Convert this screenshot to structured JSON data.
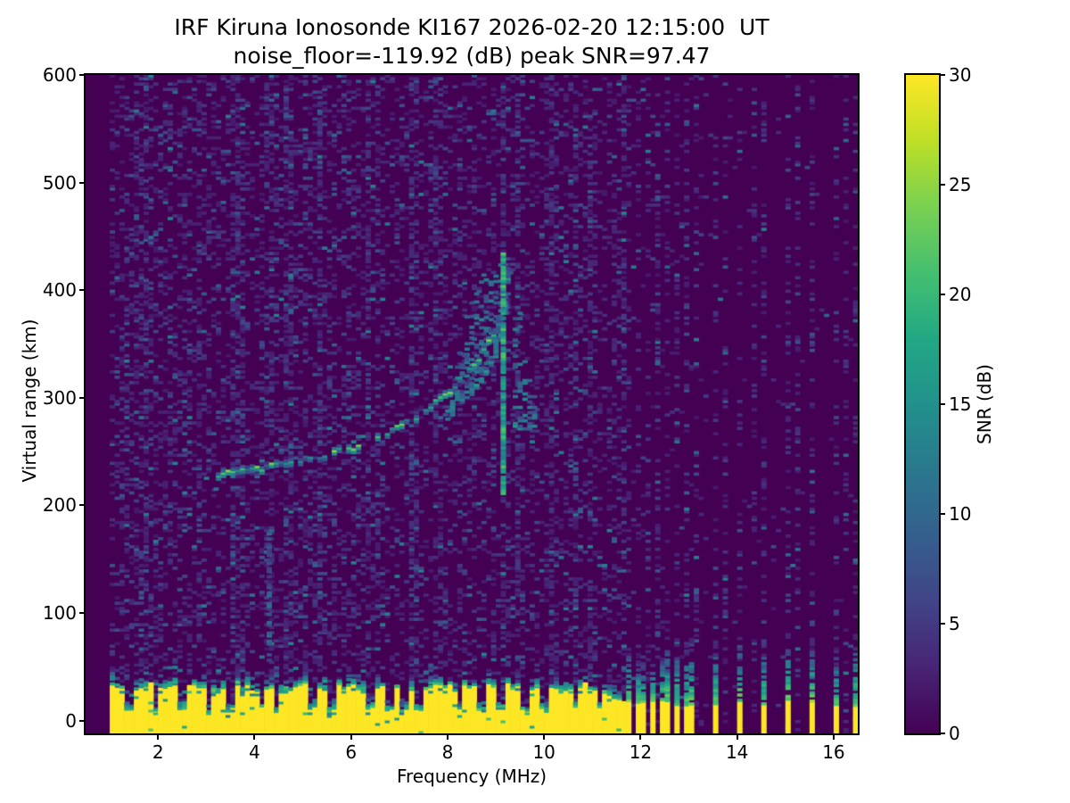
{
  "figure": {
    "background": "#ffffff"
  },
  "chart_data": {
    "type": "heatmap",
    "title": "IRF Kiruna Ionosonde KI167 2026-02-20 12:15:00  UT",
    "subtitle": "noise_floor=-119.92 (dB) peak SNR=97.47",
    "xlabel": "Frequency (MHz)",
    "ylabel": "Virtual range (km)",
    "colorbar_label": "SNR (dB)",
    "station": "KI167",
    "timestamp_ut": "2026-02-20 12:15:00",
    "noise_floor_db": -119.92,
    "peak_snr_db": 97.47,
    "xlim": [
      0.5,
      16.5
    ],
    "ylim": [
      -12,
      600
    ],
    "clim": [
      0,
      30
    ],
    "xticks": [
      2,
      4,
      6,
      8,
      10,
      12,
      14,
      16
    ],
    "yticks": [
      0,
      100,
      200,
      300,
      400,
      500,
      600
    ],
    "cticks": [
      0,
      5,
      10,
      15,
      20,
      25,
      30
    ],
    "colormap": "viridis",
    "colormap_stops": [
      {
        "t": 0.0,
        "c": "#440154"
      },
      {
        "t": 0.1,
        "c": "#482475"
      },
      {
        "t": 0.2,
        "c": "#414487"
      },
      {
        "t": 0.3,
        "c": "#355f8d"
      },
      {
        "t": 0.4,
        "c": "#2a788e"
      },
      {
        "t": 0.5,
        "c": "#21918c"
      },
      {
        "t": 0.6,
        "c": "#22a884"
      },
      {
        "t": 0.7,
        "c": "#44bf70"
      },
      {
        "t": 0.8,
        "c": "#7ad151"
      },
      {
        "t": 0.9,
        "c": "#bddf26"
      },
      {
        "t": 1.0,
        "c": "#fde725"
      }
    ],
    "data_start_mhz": 1.0,
    "freq_bin_mhz": 0.1,
    "range_bin_km": 2.5,
    "noise": {
      "speckle_density": 0.4,
      "speckle_db_scale": 1.9,
      "speckle_db_floor": 1.2,
      "active_columns_mhz": [
        1.65,
        2.8,
        3.6,
        4.25,
        4.7,
        5.3,
        6.3,
        7.25,
        7.75,
        9.1,
        10.15,
        10.9
      ],
      "stripe_columns_mhz": [
        11.7,
        11.9,
        12.1,
        12.3,
        12.5,
        12.7,
        12.9,
        13.1,
        13.5,
        13.7,
        14.0,
        14.3,
        14.5,
        15.0,
        15.2,
        15.5,
        16.0,
        16.2,
        16.42
      ],
      "cluster_zone_mhz": [
        11.65,
        13.3
      ]
    },
    "ground_band": {
      "top_km_mean": 27,
      "top_km_jitter": 8,
      "solid_until_mhz": 11.6,
      "taper_start_mhz": 10.85,
      "bar_freqs_mhz": [
        11.7,
        11.87,
        12.03,
        12.2,
        12.37,
        12.53,
        12.7,
        12.87,
        13.03,
        13.5,
        14.0,
        14.5,
        15.0,
        15.5,
        16.0,
        16.42
      ],
      "notch_freqs_mhz": [
        1.35,
        1.9,
        2.45,
        3.0,
        3.45,
        4.1,
        4.4,
        5.15,
        5.55,
        6.35,
        6.75,
        7.05,
        7.35,
        8.2,
        8.65,
        9.05,
        9.55,
        9.95,
        10.6,
        11.1
      ]
    },
    "echo_trace": {
      "critical_freq_mhz": 9.25,
      "points_mhz_km": [
        [
          3.2,
          228
        ],
        [
          3.6,
          230
        ],
        [
          4.0,
          232
        ],
        [
          4.5,
          236
        ],
        [
          5.0,
          241
        ],
        [
          5.5,
          247
        ],
        [
          6.0,
          252
        ],
        [
          6.5,
          261
        ],
        [
          7.0,
          272
        ],
        [
          7.4,
          284
        ],
        [
          7.8,
          298
        ],
        [
          8.1,
          310
        ],
        [
          8.4,
          324
        ],
        [
          8.7,
          342
        ],
        [
          8.95,
          362
        ],
        [
          9.1,
          385
        ],
        [
          9.2,
          410
        ],
        [
          9.25,
          430
        ]
      ],
      "gap_probability": 0.2
    },
    "spread_plume": {
      "freq_range_mhz": [
        7.95,
        9.75
      ],
      "top_km_points": [
        [
          7.95,
          315
        ],
        [
          8.2,
          360
        ],
        [
          8.5,
          400
        ],
        [
          8.8,
          420
        ],
        [
          9.1,
          432
        ],
        [
          9.3,
          428
        ],
        [
          9.5,
          375
        ],
        [
          9.65,
          330
        ],
        [
          9.75,
          300
        ]
      ],
      "streak_columns_mhz": [
        8.45,
        8.75,
        9.0
      ]
    },
    "bright_line": {
      "freq_mhz": 9.1,
      "km_range": [
        210,
        435
      ]
    },
    "faint_line": {
      "freq_mhz": 4.25,
      "km_range": [
        55,
        180
      ]
    }
  }
}
